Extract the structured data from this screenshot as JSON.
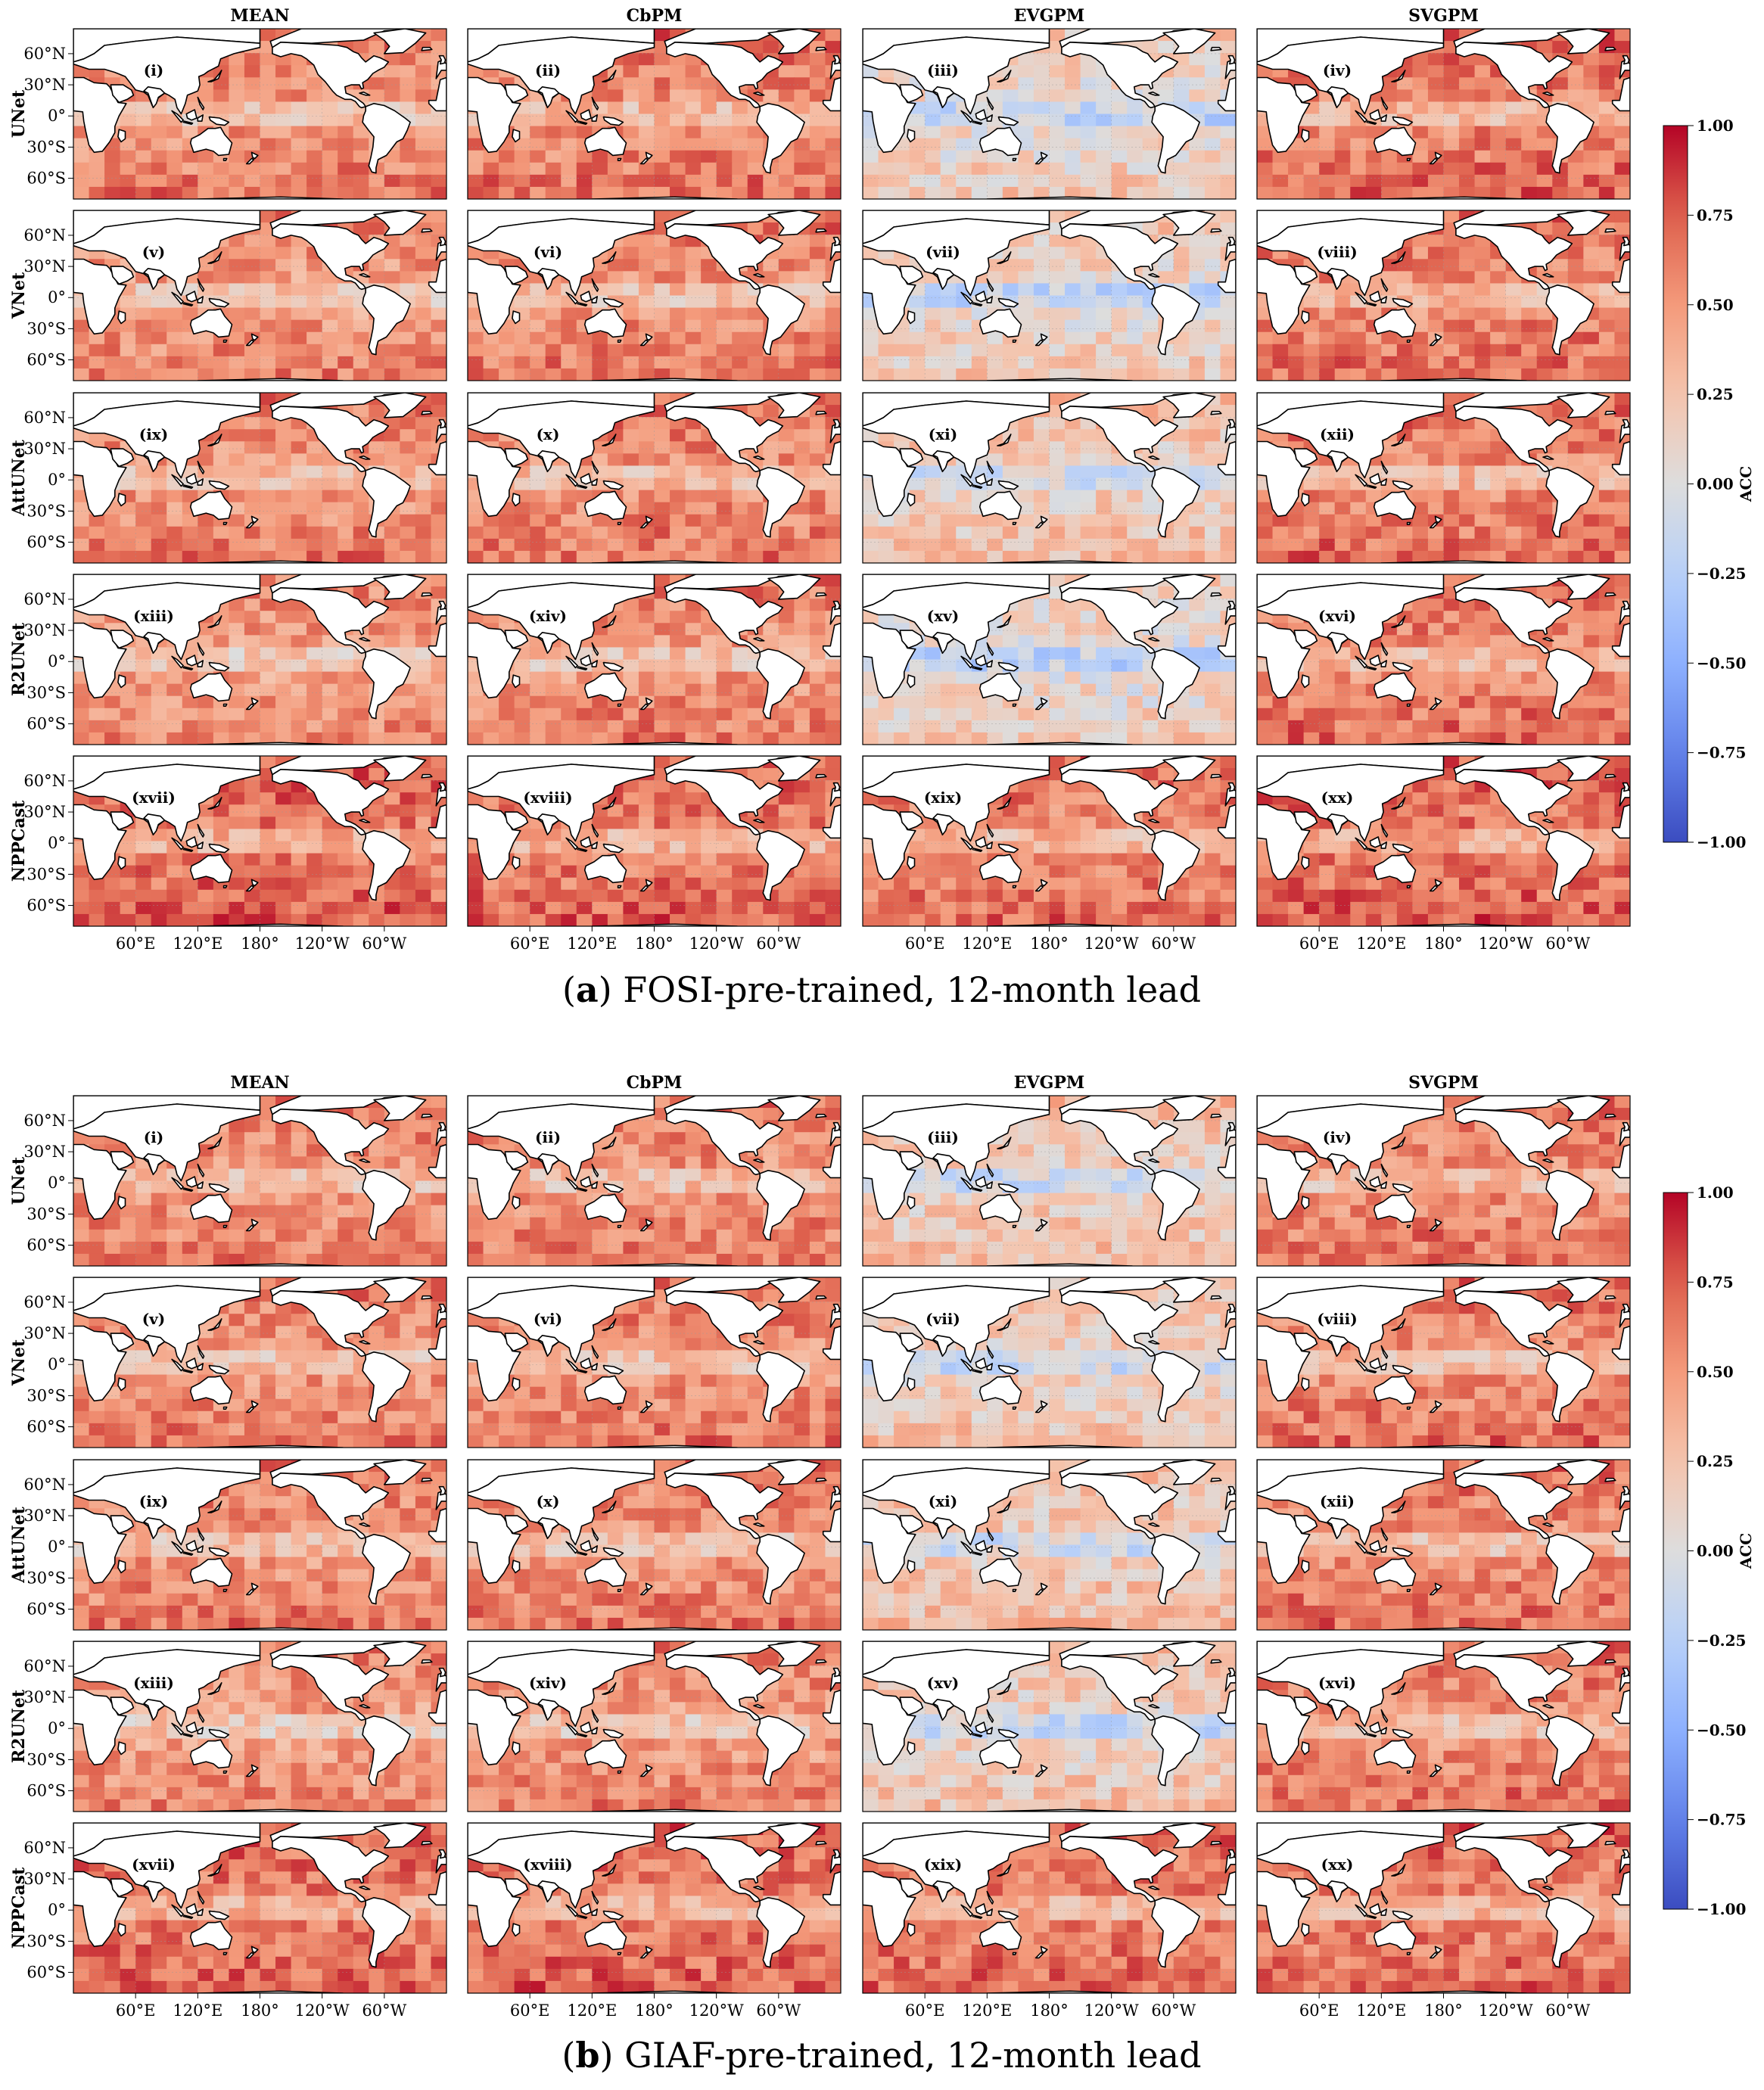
{
  "figures": [
    {
      "caption_letter": "a",
      "caption_text": ") FOSI-pre-trained, 12-month lead",
      "caption_open": "("
    },
    {
      "caption_letter": "b",
      "caption_text": ") GIAF-pre-trained, 12-month lead",
      "caption_open": "("
    }
  ],
  "chart_data": {
    "type": "heatmap",
    "columns": [
      "MEAN",
      "CbPM",
      "EVGPM",
      "SVGPM"
    ],
    "rows": [
      "UNet",
      "VNet",
      "AttUNet",
      "R2UNet",
      "NPPCast"
    ],
    "panel_labels": [
      "(i)",
      "(ii)",
      "(iii)",
      "(iv)",
      "(v)",
      "(vi)",
      "(vii)",
      "(viii)",
      "(ix)",
      "(x)",
      "(xi)",
      "(xii)",
      "(xiii)",
      "(xiv)",
      "(xv)",
      "(xvi)",
      "(xvii)",
      "(xviii)",
      "(xix)",
      "(xx)"
    ],
    "lat_ticks": [
      "60°N",
      "30°N",
      "0°",
      "30°S",
      "60°S"
    ],
    "lat_values": [
      60,
      30,
      0,
      -30,
      -60
    ],
    "lon_ticks": [
      "60°E",
      "120°E",
      "180°",
      "120°W",
      "60°W"
    ],
    "lon_values": [
      60,
      120,
      180,
      240,
      300
    ],
    "colorbar": {
      "label": "ACC",
      "ticks": [
        "1.00",
        "0.75",
        "0.50",
        "0.25",
        "0.00",
        "−0.25",
        "−0.50",
        "−0.75",
        "−1.00"
      ],
      "tick_values": [
        1,
        0.75,
        0.5,
        0.25,
        0,
        -0.25,
        -0.5,
        -0.75,
        -1
      ],
      "range": [
        -1,
        1
      ],
      "colormap": "coolwarm",
      "low_color": "#3b4cc0",
      "mid_color": "#dddddd",
      "high_color": "#b40426"
    },
    "approx_mean_acc": {
      "a": [
        [
          0.55,
          0.58,
          0.12,
          0.62
        ],
        [
          0.52,
          0.56,
          0.14,
          0.6
        ],
        [
          0.55,
          0.57,
          0.2,
          0.6
        ],
        [
          0.5,
          0.54,
          0.1,
          0.6
        ],
        [
          0.66,
          0.64,
          0.6,
          0.66
        ]
      ],
      "b": [
        [
          0.55,
          0.56,
          0.2,
          0.58
        ],
        [
          0.55,
          0.56,
          0.18,
          0.58
        ],
        [
          0.55,
          0.55,
          0.22,
          0.58
        ],
        [
          0.5,
          0.52,
          0.18,
          0.58
        ],
        [
          0.64,
          0.64,
          0.62,
          0.62
        ]
      ]
    }
  }
}
